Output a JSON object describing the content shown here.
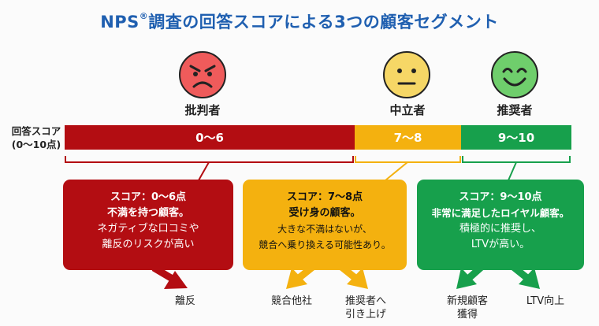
{
  "title_main": "NPS",
  "title_mark": "®",
  "title_rest": "調査の回答スコアによる3つの顧客セグメント",
  "scale_label": [
    "回答スコア",
    "(0〜10点)"
  ],
  "colors": {
    "title": "#1f5fb0",
    "red": "#b30d12",
    "yellow": "#f4b10f",
    "green": "#17a04c"
  },
  "segments": [
    {
      "name": "批判者",
      "face": "angry-face-icon",
      "range": "0〜6",
      "box_lines_bold": [
        "スコア：0〜6点",
        "不満を持つ顧客。"
      ],
      "box_lines": [
        "ネガティブな口コミや",
        "離反のリスクが高い"
      ],
      "outcomes": [
        [
          "離反"
        ]
      ]
    },
    {
      "name": "中立者",
      "face": "neutral-face-icon",
      "range": "7〜8",
      "box_lines_bold": [
        "スコア：7〜8点",
        "受け身の顧客。"
      ],
      "box_lines": [
        "大きな不満はないが、",
        "競合へ乗り換える可能性あり。"
      ],
      "outcomes": [
        [
          "競合他社"
        ],
        [
          "推奨者へ",
          "引き上げ"
        ]
      ]
    },
    {
      "name": "推奨者",
      "face": "smiling-face-icon",
      "range": "9〜10",
      "box_lines_bold": [
        "スコア：9〜10点",
        "非常に満足したロイヤル顧客。"
      ],
      "box_lines": [
        "積極的に推奨し、",
        "LTVが高い。"
      ],
      "outcomes": [
        [
          "新規顧客",
          "獲得"
        ],
        [
          "LTV向上"
        ]
      ]
    }
  ]
}
